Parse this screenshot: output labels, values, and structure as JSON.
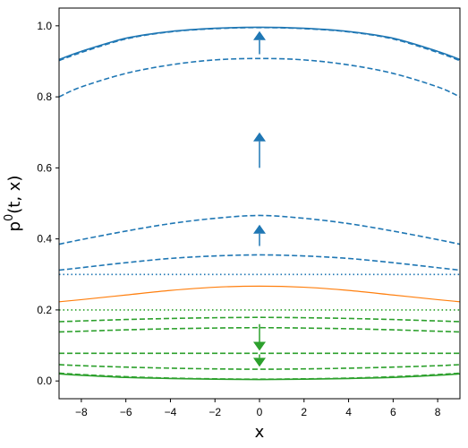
{
  "chart_data": {
    "type": "line",
    "title": "",
    "xlabel": "x",
    "ylabel": "p⁰(t, x)",
    "ylabel_base": "p",
    "ylabel_sup": "0",
    "ylabel_rest": "(t, x)",
    "xlim": [
      -9,
      9
    ],
    "ylim": [
      -0.05,
      1.05
    ],
    "grid": false,
    "legend": "none",
    "x_ticks": [
      {
        "value": -8,
        "label": "−8"
      },
      {
        "value": -6,
        "label": "−6"
      },
      {
        "value": -4,
        "label": "−4"
      },
      {
        "value": -2,
        "label": "−2"
      },
      {
        "value": 0,
        "label": "0"
      },
      {
        "value": 2,
        "label": "2"
      },
      {
        "value": 4,
        "label": "4"
      },
      {
        "value": 6,
        "label": "6"
      },
      {
        "value": 8,
        "label": "8"
      }
    ],
    "y_ticks": [
      {
        "value": 0.0,
        "label": "0.0"
      },
      {
        "value": 0.2,
        "label": "0.2"
      },
      {
        "value": 0.4,
        "label": "0.4"
      },
      {
        "value": 0.6,
        "label": "0.6"
      },
      {
        "value": 0.8,
        "label": "0.8"
      },
      {
        "value": 1.0,
        "label": "1.0"
      }
    ],
    "colors": {
      "blue": "#1f77b4",
      "orange": "#ff7f0e",
      "green": "#2ca02c"
    },
    "x": [
      -9,
      -8,
      -6,
      -4,
      -2,
      0,
      2,
      4,
      6,
      8,
      9
    ],
    "series": [
      {
        "color": "blue",
        "style": "solid",
        "values": [
          0.905,
          0.928,
          0.965,
          0.984,
          0.993,
          0.996,
          0.993,
          0.984,
          0.965,
          0.928,
          0.905
        ]
      },
      {
        "color": "blue",
        "style": "dashed",
        "values": [
          0.902,
          0.925,
          0.963,
          0.983,
          0.992,
          0.995,
          0.992,
          0.983,
          0.963,
          0.925,
          0.902
        ]
      },
      {
        "color": "blue",
        "style": "dashed",
        "values": [
          0.8,
          0.828,
          0.866,
          0.89,
          0.904,
          0.908,
          0.904,
          0.89,
          0.866,
          0.828,
          0.8
        ]
      },
      {
        "color": "blue",
        "style": "dashed",
        "values": [
          0.385,
          0.398,
          0.422,
          0.443,
          0.458,
          0.466,
          0.458,
          0.443,
          0.422,
          0.398,
          0.385
        ]
      },
      {
        "color": "blue",
        "style": "dashed",
        "values": [
          0.312,
          0.319,
          0.333,
          0.345,
          0.352,
          0.355,
          0.352,
          0.345,
          0.333,
          0.319,
          0.312
        ]
      },
      {
        "color": "blue",
        "style": "dotted",
        "values": [
          0.3,
          0.3,
          0.3,
          0.3,
          0.3,
          0.3,
          0.3,
          0.3,
          0.3,
          0.3,
          0.3
        ]
      },
      {
        "color": "orange",
        "style": "solid",
        "values": [
          0.223,
          0.229,
          0.242,
          0.255,
          0.264,
          0.267,
          0.264,
          0.255,
          0.242,
          0.229,
          0.223
        ]
      },
      {
        "color": "green",
        "style": "dotted",
        "values": [
          0.2,
          0.2,
          0.2,
          0.2,
          0.2,
          0.2,
          0.2,
          0.2,
          0.2,
          0.2,
          0.2
        ]
      },
      {
        "color": "green",
        "style": "dashed",
        "values": [
          0.167,
          0.169,
          0.173,
          0.176,
          0.178,
          0.179,
          0.178,
          0.176,
          0.173,
          0.169,
          0.167
        ]
      },
      {
        "color": "green",
        "style": "dashed",
        "values": [
          0.138,
          0.14,
          0.144,
          0.147,
          0.149,
          0.15,
          0.149,
          0.147,
          0.144,
          0.14,
          0.138
        ]
      },
      {
        "color": "green",
        "style": "dashed",
        "values": [
          0.078,
          0.078,
          0.078,
          0.078,
          0.078,
          0.078,
          0.078,
          0.078,
          0.078,
          0.078,
          0.078
        ]
      },
      {
        "color": "green",
        "style": "dashed",
        "values": [
          0.046,
          0.043,
          0.039,
          0.036,
          0.034,
          0.033,
          0.034,
          0.036,
          0.039,
          0.043,
          0.046
        ]
      },
      {
        "color": "green",
        "style": "dashed",
        "values": [
          0.022,
          0.018,
          0.012,
          0.008,
          0.006,
          0.005,
          0.006,
          0.008,
          0.012,
          0.018,
          0.022
        ]
      },
      {
        "color": "green",
        "style": "solid",
        "values": [
          0.02,
          0.016,
          0.01,
          0.007,
          0.005,
          0.004,
          0.005,
          0.007,
          0.01,
          0.016,
          0.02
        ]
      }
    ],
    "annotations": [
      {
        "type": "arrow",
        "color": "blue",
        "x": 0,
        "y_from": 0.92,
        "y_to": 0.985
      },
      {
        "type": "arrow",
        "color": "blue",
        "x": 0,
        "y_from": 0.6,
        "y_to": 0.7
      },
      {
        "type": "arrow",
        "color": "blue",
        "x": 0,
        "y_from": 0.38,
        "y_to": 0.44
      },
      {
        "type": "arrow",
        "color": "green",
        "x": 0,
        "y_from": 0.16,
        "y_to": 0.085
      },
      {
        "type": "arrow",
        "color": "green",
        "x": 0,
        "y_from": 0.075,
        "y_to": 0.04
      }
    ]
  }
}
